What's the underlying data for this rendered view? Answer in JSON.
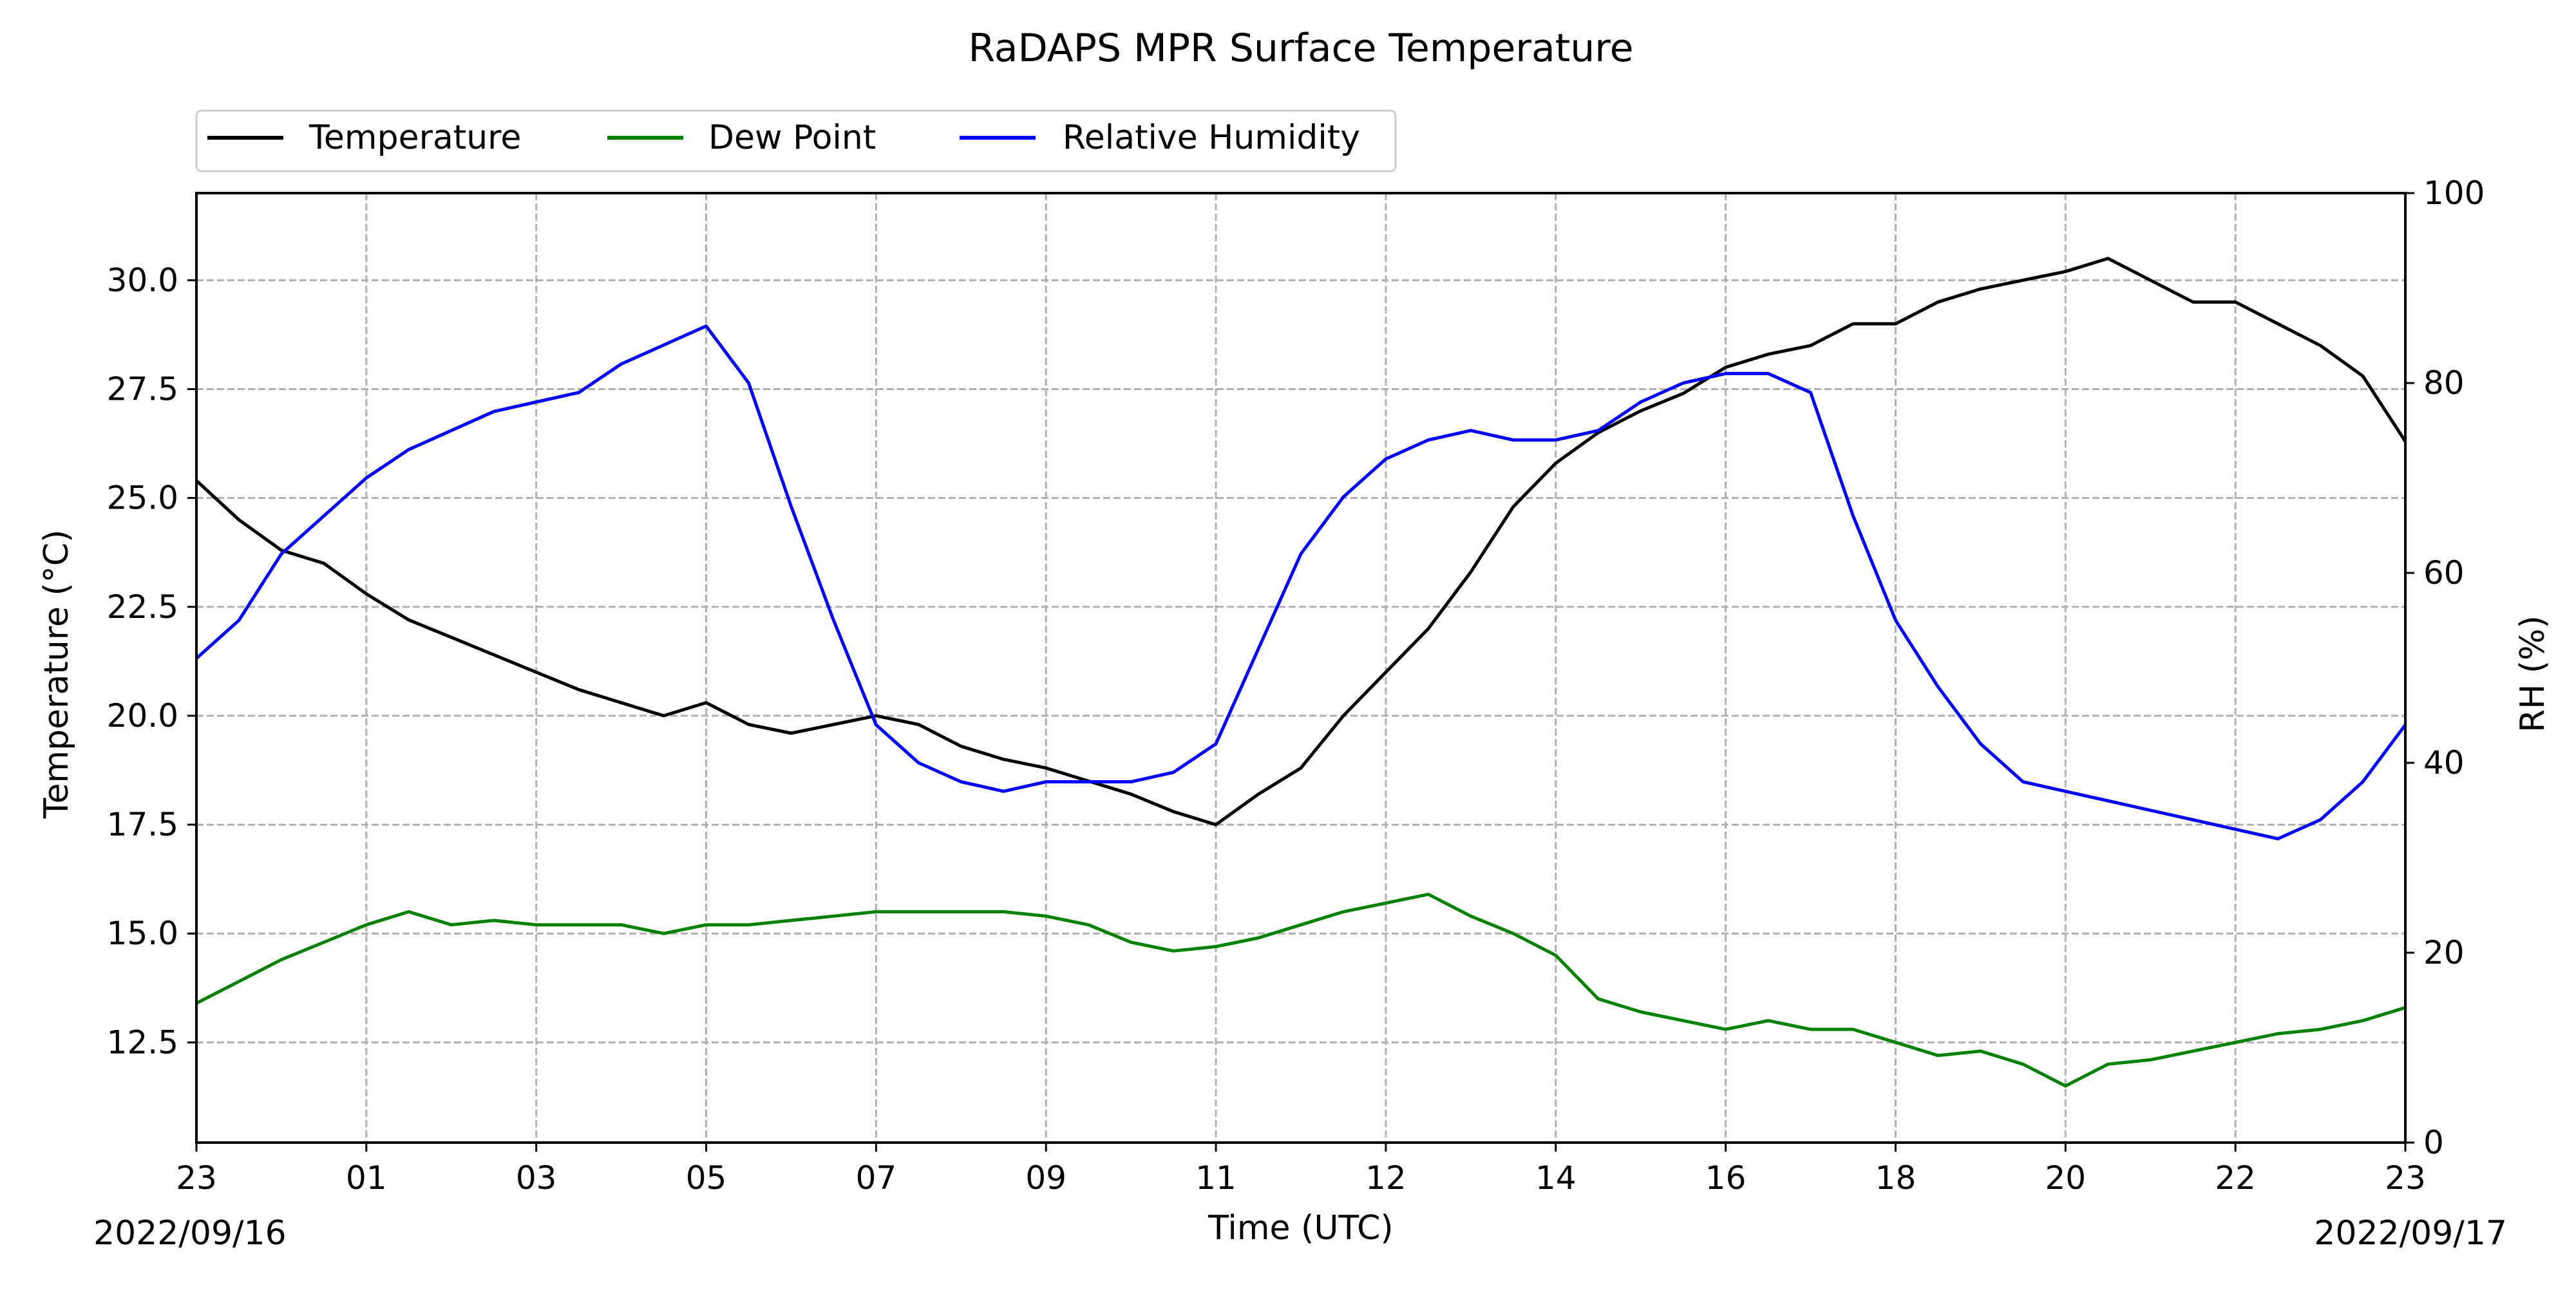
{
  "chart_data": {
    "type": "line",
    "title": "RaDAPS MPR Surface Temperature",
    "xlabel": "Time (UTC)",
    "ylabel_left": "Temperature ($^\\circ$C)",
    "ylabel_left_display": "Temperature (°C)",
    "ylabel_right": "RH (%)",
    "date_start_label": "2022/09/16",
    "date_end_label": "2022/09/17",
    "x_tick_labels": [
      "23",
      "01",
      "03",
      "05",
      "07",
      "09",
      "11",
      "12",
      "14",
      "16",
      "18",
      "20",
      "22",
      "23"
    ],
    "x_ticks_hours_from_start": [
      0,
      2,
      4,
      6,
      8,
      10,
      12,
      14,
      16,
      18,
      20,
      22,
      24,
      26
    ],
    "x_note": "x axis is elapsed time from 2022/09/16 23:00 UTC to 2022/09/17 23:00 UTC; tick labels as printed",
    "xlim_hours": [
      0,
      26
    ],
    "ylim_left": [
      10.2,
      32.0
    ],
    "y_ticks_left": [
      12.5,
      15.0,
      17.5,
      20.0,
      22.5,
      25.0,
      27.5,
      30.0
    ],
    "y_tick_labels_left": [
      "12.5",
      "15.0",
      "17.5",
      "20.0",
      "22.5",
      "25.0",
      "27.5",
      "30.0"
    ],
    "ylim_right": [
      0,
      100
    ],
    "y_ticks_right": [
      0,
      20,
      40,
      60,
      80,
      100
    ],
    "y_tick_labels_right": [
      "0",
      "20",
      "40",
      "60",
      "80",
      "100"
    ],
    "grid": true,
    "legend_placement": "top-left, above plot",
    "series": [
      {
        "name": "Temperature",
        "axis": "left",
        "color": "#000000",
        "x": [
          0,
          0.5,
          1,
          1.5,
          2,
          2.5,
          3,
          3.5,
          4,
          4.5,
          5,
          5.5,
          6,
          6.5,
          7,
          7.5,
          8,
          8.5,
          9,
          9.5,
          10,
          10.5,
          11,
          11.5,
          12,
          12.5,
          13,
          13.5,
          14,
          14.5,
          15,
          15.5,
          16,
          16.5,
          17,
          17.5,
          18,
          18.5,
          19,
          19.5,
          20,
          20.5,
          21,
          21.5,
          22,
          22.5,
          23,
          23.5,
          24,
          24.5,
          25,
          25.5,
          26
        ],
        "y": [
          25.4,
          24.5,
          23.8,
          23.5,
          22.8,
          22.2,
          21.8,
          21.4,
          21.0,
          20.6,
          20.3,
          20.0,
          20.3,
          19.8,
          19.6,
          19.8,
          20.0,
          19.8,
          19.3,
          19.0,
          18.8,
          18.5,
          18.2,
          17.8,
          17.5,
          18.2,
          18.8,
          20.0,
          21.0,
          22.0,
          23.3,
          24.8,
          25.8,
          26.5,
          27.0,
          27.4,
          28.0,
          28.3,
          28.5,
          29.0,
          29.0,
          29.5,
          29.8,
          30.0,
          30.2,
          30.5,
          30.0,
          29.5,
          29.5,
          29.0,
          28.5,
          27.8,
          26.3
        ]
      },
      {
        "name": "Dew Point",
        "axis": "left",
        "color": "#008000",
        "x": [
          0,
          0.5,
          1,
          1.5,
          2,
          2.5,
          3,
          3.5,
          4,
          4.5,
          5,
          5.5,
          6,
          6.5,
          7,
          7.5,
          8,
          8.5,
          9,
          9.5,
          10,
          10.5,
          11,
          11.5,
          12,
          12.5,
          13,
          13.5,
          14,
          14.5,
          15,
          15.5,
          16,
          16.5,
          17,
          17.5,
          18,
          18.5,
          19,
          19.5,
          20,
          20.5,
          21,
          21.5,
          22,
          22.5,
          23,
          23.5,
          24,
          24.5,
          25,
          25.5,
          26
        ],
        "y": [
          13.4,
          13.9,
          14.4,
          14.8,
          15.2,
          15.5,
          15.2,
          15.3,
          15.2,
          15.2,
          15.2,
          15.0,
          15.2,
          15.2,
          15.3,
          15.4,
          15.5,
          15.5,
          15.5,
          15.5,
          15.4,
          15.2,
          14.8,
          14.6,
          14.7,
          14.9,
          15.2,
          15.5,
          15.7,
          15.9,
          15.4,
          15.0,
          14.5,
          13.5,
          13.2,
          13.0,
          12.8,
          13.0,
          12.8,
          12.8,
          12.5,
          12.2,
          12.3,
          12.0,
          11.5,
          12.0,
          12.1,
          12.3,
          12.5,
          12.7,
          12.8,
          13.0,
          13.3
        ]
      },
      {
        "name": "Relative Humidity",
        "axis": "right",
        "color": "#0000ff",
        "x": [
          0,
          0.5,
          1,
          1.5,
          2,
          2.5,
          3,
          3.5,
          4,
          4.5,
          5,
          5.5,
          6,
          6.5,
          7,
          7.5,
          8,
          8.5,
          9,
          9.5,
          10,
          10.5,
          11,
          11.5,
          12,
          12.5,
          13,
          13.5,
          14,
          14.5,
          15,
          15.5,
          16,
          16.5,
          17,
          17.5,
          18,
          18.5,
          19,
          19.5,
          20,
          20.5,
          21,
          21.5,
          22,
          22.5,
          23,
          23.5,
          24,
          24.5,
          25,
          25.5,
          26
        ],
        "y": [
          51,
          55,
          62,
          66,
          70,
          73,
          75,
          77,
          78,
          79,
          82,
          84,
          86,
          80,
          67,
          55,
          44,
          40,
          38,
          37,
          38,
          38,
          38,
          39,
          42,
          52,
          62,
          68,
          72,
          74,
          75,
          74,
          74,
          75,
          78,
          80,
          81,
          81,
          79,
          66,
          55,
          48,
          42,
          38,
          37,
          36,
          35,
          34,
          33,
          32,
          34,
          38,
          44
        ]
      }
    ]
  }
}
